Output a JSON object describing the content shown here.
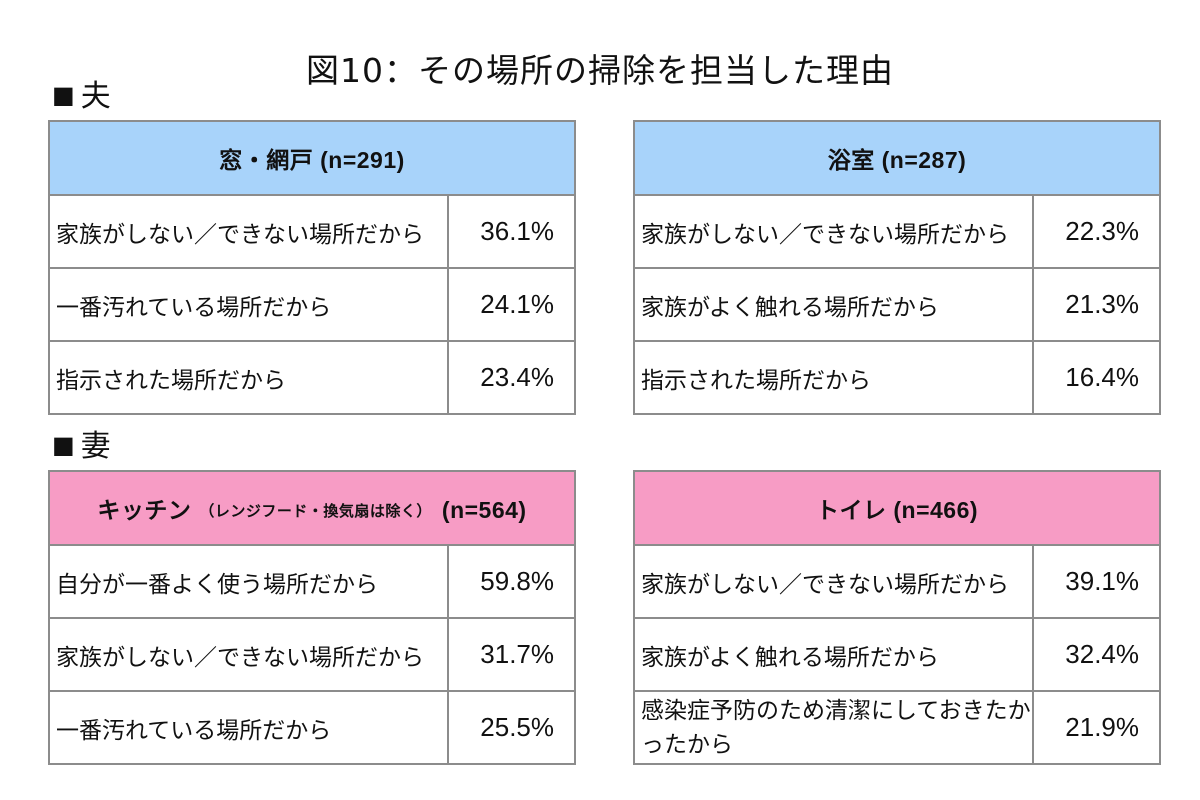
{
  "title": "図10：その場所の掃除を担当した理由",
  "sections": [
    {
      "label": "夫",
      "marker": "■",
      "tables": [
        {
          "header": "窓・網戸",
          "header_sub": "",
          "n": "(n=291)",
          "rows": [
            {
              "reason": "家族がしない／できない場所だから",
              "pct": "36.1%"
            },
            {
              "reason": "一番汚れている場所だから",
              "pct": "24.1%"
            },
            {
              "reason": "指示された場所だから",
              "pct": "23.4%"
            }
          ]
        },
        {
          "header": "浴室",
          "header_sub": "",
          "n": "(n=287)",
          "rows": [
            {
              "reason": "家族がしない／できない場所だから",
              "pct": "22.3%"
            },
            {
              "reason": "家族がよく触れる場所だから",
              "pct": "21.3%"
            },
            {
              "reason": "指示された場所だから",
              "pct": "16.4%"
            }
          ]
        }
      ]
    },
    {
      "label": "妻",
      "marker": "■",
      "tables": [
        {
          "header": "キッチン",
          "header_sub": "（レンジフード・換気扇は除く）",
          "n": "(n=564)",
          "rows": [
            {
              "reason": "自分が一番よく使う場所だから",
              "pct": "59.8%"
            },
            {
              "reason": "家族がしない／できない場所だから",
              "pct": "31.7%"
            },
            {
              "reason": "一番汚れている場所だから",
              "pct": "25.5%"
            }
          ]
        },
        {
          "header": "トイレ",
          "header_sub": "",
          "n": "(n=466)",
          "rows": [
            {
              "reason": "家族がしない／できない場所だから",
              "pct": "39.1%"
            },
            {
              "reason": "家族がよく触れる場所だから",
              "pct": "32.4%"
            },
            {
              "reason": "感染症予防のため清潔にしておきたかったから",
              "pct": "21.9%"
            }
          ]
        }
      ]
    }
  ]
}
